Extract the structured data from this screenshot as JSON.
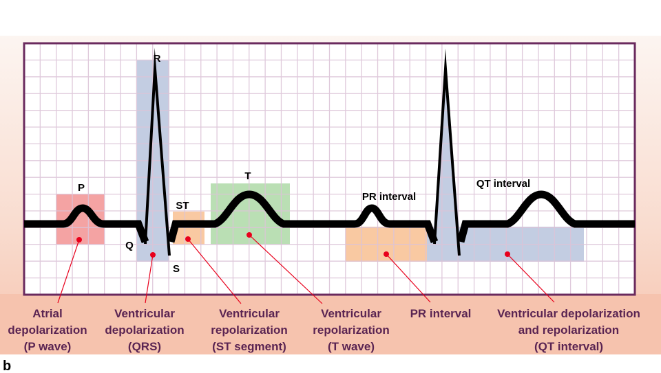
{
  "panel_letter": "b",
  "wave_labels": {
    "P": "P",
    "Q": "Q",
    "R": "R",
    "S": "S",
    "ST": "ST",
    "T": "T",
    "PR": "PR interval",
    "QT": "QT interval"
  },
  "captions": [
    {
      "lines": [
        "Atrial",
        "depolarization",
        "(P wave)"
      ]
    },
    {
      "lines": [
        "Ventricular",
        "depolarization",
        "(QRS)"
      ]
    },
    {
      "lines": [
        "Ventricular",
        "repolarization",
        "(ST segment)"
      ]
    },
    {
      "lines": [
        "Ventricular",
        "repolarization",
        "(T wave)"
      ]
    },
    {
      "lines": [
        "PR interval"
      ]
    },
    {
      "lines": [
        "Ventricular depolarization",
        "and repolarization",
        "(QT interval)"
      ]
    }
  ],
  "colors": {
    "frame": "#6a2a5e",
    "grid": "#dcc4d8",
    "p_box": "#f4a3a3",
    "qrs_box": "#c3cde2",
    "st_box": "#f9c9a2",
    "t_box": "#badfb4",
    "pointer": "#e8001c",
    "caption": "#5a2452"
  }
}
